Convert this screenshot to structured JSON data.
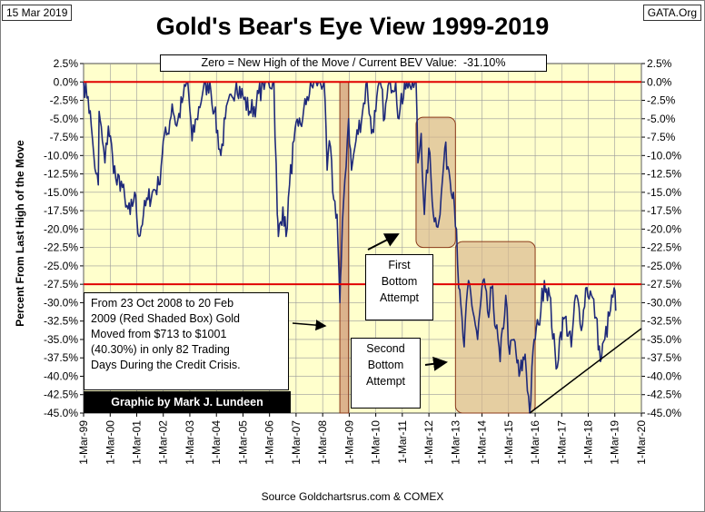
{
  "date_label": "15 Mar 2019",
  "site_label": "GATA.Org",
  "source": "Source Goldchartsrus.com & COMEX",
  "colors": {
    "plot_bg": "#ffffcc",
    "line": "#1f2a7a",
    "red_line": "#e00000",
    "box_fill": "#d7b48a",
    "box_border": "#8b3a1a"
  },
  "chart_data": {
    "type": "line",
    "title": "Gold's Bear's Eye View 1999-2019",
    "ylabel": "Percent   From Last High of the Move",
    "xlabel": "",
    "x_type": "date",
    "xlim": [
      "1999-03-01",
      "2020-03-01"
    ],
    "ylim": [
      -45,
      2.5
    ],
    "y_ticks": [
      "2.5%",
      "0.0%",
      "-2.5%",
      "-5.0%",
      "-7.5%",
      "-10.0%",
      "-12.5%",
      "-15.0%",
      "-17.5%",
      "-20.0%",
      "-22.5%",
      "-25.0%",
      "-27.5%",
      "-30.0%",
      "-32.5%",
      "-35.0%",
      "-37.5%",
      "-40.0%",
      "-42.5%",
      "-45.0%"
    ],
    "x_ticks": [
      "1-Mar-99",
      "1-Mar-00",
      "1-Mar-01",
      "1-Mar-02",
      "1-Mar-03",
      "1-Mar-04",
      "1-Mar-05",
      "1-Mar-06",
      "1-Mar-07",
      "1-Mar-08",
      "1-Mar-09",
      "1-Mar-10",
      "1-Mar-11",
      "1-Mar-12",
      "1-Mar-13",
      "1-Mar-14",
      "1-Mar-15",
      "1-Mar-16",
      "1-Mar-17",
      "1-Mar-18",
      "1-Mar-19",
      "1-Mar-20"
    ],
    "grid": true,
    "current_value_label": "Zero = New High of the Move / Current BEV Value:  -31.10%",
    "reference_lines": [
      0,
      -27.5
    ],
    "series": [
      {
        "points": [
          [
            "1999-03-01",
            0
          ],
          [
            "1999-05-01",
            -2
          ],
          [
            "1999-06-15",
            -6
          ],
          [
            "1999-07-20",
            -10
          ],
          [
            "1999-08-20",
            -12.5
          ],
          [
            "1999-09-20",
            -14
          ],
          [
            "1999-10-01",
            -4
          ],
          [
            "1999-11-15",
            -8
          ],
          [
            "1999-12-20",
            -11
          ],
          [
            "2000-02-05",
            -6
          ],
          [
            "2000-04-01",
            -10
          ],
          [
            "2000-06-01",
            -14
          ],
          [
            "2000-08-01",
            -13.5
          ],
          [
            "2000-10-01",
            -17
          ],
          [
            "2000-12-01",
            -18
          ],
          [
            "2001-02-01",
            -15
          ],
          [
            "2001-04-01",
            -21
          ],
          [
            "2001-06-01",
            -18
          ],
          [
            "2001-08-01",
            -16
          ],
          [
            "2001-10-01",
            -15
          ],
          [
            "2002-01-01",
            -14
          ],
          [
            "2002-03-01",
            -8
          ],
          [
            "2002-05-01",
            -7
          ],
          [
            "2002-07-01",
            -3
          ],
          [
            "2002-09-01",
            -6
          ],
          [
            "2002-12-01",
            -2
          ],
          [
            "2003-02-01",
            0
          ],
          [
            "2003-04-01",
            -8
          ],
          [
            "2003-06-01",
            -5
          ],
          [
            "2003-09-01",
            -1
          ],
          [
            "2003-12-01",
            0
          ],
          [
            "2004-02-01",
            -4
          ],
          [
            "2004-05-01",
            -10
          ],
          [
            "2004-07-01",
            -5
          ],
          [
            "2004-10-01",
            -2
          ],
          [
            "2004-12-01",
            0
          ],
          [
            "2005-03-01",
            -2
          ],
          [
            "2005-06-01",
            -4
          ],
          [
            "2005-09-01",
            -3
          ],
          [
            "2005-12-01",
            0
          ],
          [
            "2006-02-01",
            0
          ],
          [
            "2006-05-01",
            0
          ],
          [
            "2006-06-15",
            -18
          ],
          [
            "2006-07-01",
            -21
          ],
          [
            "2006-09-01",
            -17
          ],
          [
            "2006-10-15",
            -21
          ],
          [
            "2006-12-01",
            -14
          ],
          [
            "2007-02-01",
            -8
          ],
          [
            "2007-04-01",
            -6
          ],
          [
            "2007-06-01",
            -5
          ],
          [
            "2007-08-01",
            -2
          ],
          [
            "2007-11-01",
            0
          ],
          [
            "2008-01-01",
            0
          ],
          [
            "2008-03-20",
            0
          ],
          [
            "2008-05-01",
            -12
          ],
          [
            "2008-06-01",
            -8
          ],
          [
            "2008-08-01",
            -16
          ],
          [
            "2008-09-15",
            -18
          ],
          [
            "2008-10-23",
            -30
          ],
          [
            "2008-11-10",
            -25
          ],
          [
            "2008-12-15",
            -16
          ],
          [
            "2009-02-20",
            -5
          ],
          [
            "2009-04-01",
            -12
          ],
          [
            "2009-06-01",
            -8
          ],
          [
            "2009-09-01",
            -4
          ],
          [
            "2009-11-01",
            0
          ],
          [
            "2010-01-01",
            -7
          ],
          [
            "2010-03-01",
            -4
          ],
          [
            "2010-05-01",
            0
          ],
          [
            "2010-07-01",
            -5
          ],
          [
            "2010-09-01",
            0
          ],
          [
            "2010-12-01",
            0
          ],
          [
            "2011-01-15",
            -5
          ],
          [
            "2011-04-01",
            0
          ],
          [
            "2011-06-01",
            0
          ],
          [
            "2011-07-01",
            -1
          ],
          [
            "2011-09-06",
            0
          ],
          [
            "2011-10-01",
            -11
          ],
          [
            "2011-11-15",
            -7
          ],
          [
            "2011-12-29",
            -18
          ],
          [
            "2012-02-28",
            -9
          ],
          [
            "2012-05-15",
            -19
          ],
          [
            "2012-08-01",
            -18
          ],
          [
            "2012-10-05",
            -9
          ],
          [
            "2012-12-01",
            -12
          ],
          [
            "2013-02-01",
            -15
          ],
          [
            "2013-03-15",
            -20
          ],
          [
            "2013-04-15",
            -28
          ],
          [
            "2013-06-28",
            -36
          ],
          [
            "2013-08-28",
            -27
          ],
          [
            "2013-12-31",
            -35
          ],
          [
            "2014-03-15",
            -27
          ],
          [
            "2014-06-01",
            -32
          ],
          [
            "2014-07-10",
            -28
          ],
          [
            "2014-11-05",
            -38
          ],
          [
            "2015-01-22",
            -29
          ],
          [
            "2015-03-15",
            -37
          ],
          [
            "2015-05-15",
            -35
          ],
          [
            "2015-07-24",
            -40
          ],
          [
            "2015-10-15",
            -37
          ],
          [
            "2015-12-17",
            -45
          ],
          [
            "2016-02-15",
            -35
          ],
          [
            "2016-04-15",
            -33
          ],
          [
            "2016-07-06",
            -27
          ],
          [
            "2016-09-15",
            -29
          ],
          [
            "2016-12-15",
            -39
          ],
          [
            "2017-02-15",
            -34
          ],
          [
            "2017-04-15",
            -32
          ],
          [
            "2017-07-10",
            -36
          ],
          [
            "2017-09-08",
            -29
          ],
          [
            "2017-12-12",
            -33
          ],
          [
            "2018-01-25",
            -28
          ],
          [
            "2018-04-15",
            -29
          ],
          [
            "2018-06-15",
            -32
          ],
          [
            "2018-08-16",
            -38
          ],
          [
            "2018-10-15",
            -35
          ],
          [
            "2019-01-01",
            -31
          ],
          [
            "2019-02-20",
            -28
          ],
          [
            "2019-03-15",
            -31.1
          ]
        ]
      }
    ],
    "shaded_boxes": [
      {
        "from": "2008-10-23",
        "to": "2009-02-20",
        "y_top": 0,
        "y_bottom": -45,
        "color": "red"
      },
      {
        "from": "2011-09-06",
        "to": "2013-03-01",
        "y_top": -4.8,
        "y_bottom": -22.5,
        "color": "tan"
      },
      {
        "from": "2013-03-01",
        "to": "2016-03-01",
        "y_top": -21.7,
        "y_bottom": -45,
        "color": "tan"
      }
    ],
    "trend_line": {
      "from": [
        "2015-12-17",
        -45
      ],
      "to": [
        "2020-03-01",
        -33.5
      ]
    },
    "annotations": {
      "note_lines": [
        "From 23 Oct 2008 to 20 Feb",
        "2009 (Red Shaded Box)  Gold",
        "Moved from $713 to $1001",
        "(40.30%) in only 82 Trading",
        "Days During the Credit Crisis."
      ],
      "credit": "Graphic by Mark J. Lundeen",
      "first_bottom": [
        "First",
        "Bottom",
        "Attempt"
      ],
      "second_bottom": [
        "Second",
        "Bottom",
        "Attempt"
      ]
    }
  }
}
